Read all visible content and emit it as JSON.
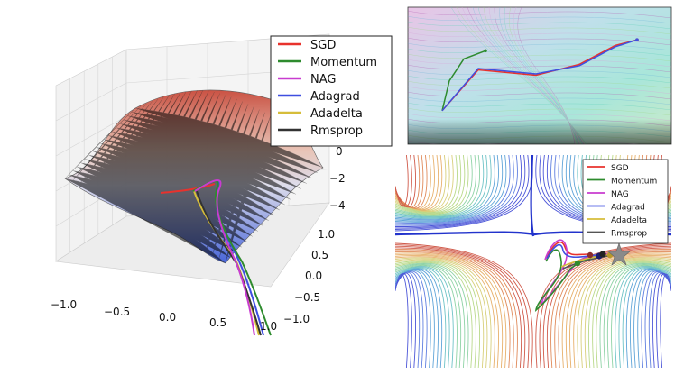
{
  "chart_data": [
    {
      "type": "line",
      "panel": "3d-saddle-surface",
      "legend": [
        "SGD",
        "Momentum",
        "NAG",
        "Adagrad",
        "Adadelta",
        "Rmsprop"
      ],
      "colors": {
        "SGD": "#e8322d",
        "Momentum": "#2e8b2e",
        "NAG": "#c83ccf",
        "Adagrad": "#3f4fe0",
        "Adadelta": "#d6bd3a",
        "Rmsprop": "#333333"
      },
      "x_ticks": [
        "−1.0",
        "−0.5",
        "0.0",
        "0.5",
        "1.0"
      ],
      "y_ticks": [
        "1.0",
        "0.5",
        "0.0",
        "−0.5",
        "−1.0"
      ],
      "z_ticks": [
        "0",
        "−2",
        "−4"
      ],
      "xlim": [
        -1.0,
        1.0
      ],
      "ylim": [
        -1.0,
        1.0
      ],
      "zlim": [
        -4,
        0
      ],
      "grid": true,
      "legend_placement": "top-right"
    },
    {
      "type": "line",
      "panel": "2d-contour-top",
      "series": [
        {
          "name": "SGD",
          "x": [
            -2.2,
            -1.2,
            0.4,
            1.6,
            2.6,
            3.2
          ],
          "y": [
            -2.1,
            -0.6,
            -0.8,
            -0.4,
            0.3,
            0.5
          ]
        },
        {
          "name": "Momentum",
          "x": [
            -2.2,
            -2.0,
            -1.6,
            -1.0
          ],
          "y": [
            -2.1,
            -1.0,
            -0.2,
            0.1
          ]
        },
        {
          "name": "Adagrad",
          "x": [
            -2.2,
            -1.2,
            0.4,
            1.6,
            2.6,
            3.2
          ],
          "y": [
            -2.1,
            -0.55,
            -0.75,
            -0.45,
            0.25,
            0.5
          ]
        }
      ],
      "xlim": [
        -3,
        4
      ],
      "ylim": [
        -3,
        1.5
      ],
      "grid": false
    },
    {
      "type": "line",
      "panel": "2d-contour-bottom",
      "legend": [
        "SGD",
        "Momentum",
        "NAG",
        "Adagrad",
        "Adadelta",
        "Rmsprop"
      ],
      "colors": {
        "SGD": "#e8322d",
        "Momentum": "#2e8b2e",
        "NAG": "#c83ccf",
        "Adagrad": "#3f4fe0",
        "Adadelta": "#d6bd3a",
        "Rmsprop": "#333333"
      },
      "legend_placement": "top-right",
      "grid": false
    }
  ],
  "legend_3d": {
    "items": [
      {
        "label": "SGD",
        "color": "#e8322d"
      },
      {
        "label": "Momentum",
        "color": "#2e8b2e"
      },
      {
        "label": "NAG",
        "color": "#c83ccf"
      },
      {
        "label": "Adagrad",
        "color": "#3f4fe0"
      },
      {
        "label": "Adadelta",
        "color": "#d6bd3a"
      },
      {
        "label": "Rmsprop",
        "color": "#333333"
      }
    ]
  },
  "legend_contour": {
    "items": [
      {
        "label": "SGD",
        "color": "#e8322d"
      },
      {
        "label": "Momentum",
        "color": "#2e8b2e"
      },
      {
        "label": "NAG",
        "color": "#c83ccf"
      },
      {
        "label": "Adagrad",
        "color": "#3f4fe0"
      },
      {
        "label": "Adadelta",
        "color": "#d6bd3a"
      },
      {
        "label": "Rmsprop",
        "color": "#555555"
      }
    ]
  },
  "axis_3d": {
    "x_ticks": [
      "−1.0",
      "−0.5",
      "0.0",
      "0.5",
      "1.0"
    ],
    "y_ticks": [
      "1.0",
      "0.5",
      "0.0",
      "−0.5",
      "−1.0"
    ],
    "z_ticks": [
      "0",
      "−2",
      "−4"
    ]
  }
}
